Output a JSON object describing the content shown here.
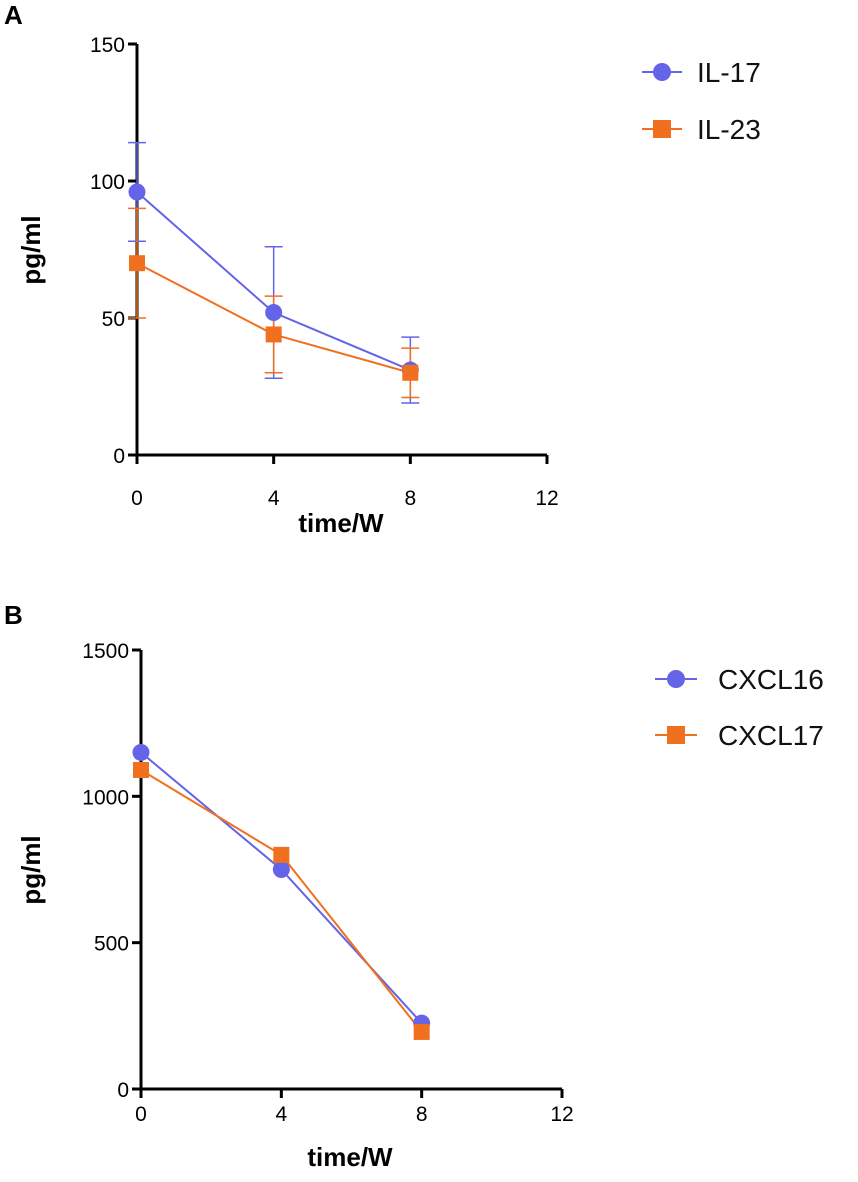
{
  "colors": {
    "series1": "#6464e8",
    "series2": "#f07020",
    "axis": "#000000"
  },
  "chart_data": [
    {
      "panel": "A",
      "type": "line",
      "xlabel": "time/W",
      "ylabel": "pg/ml",
      "xlim": [
        0,
        12
      ],
      "ylim": [
        0,
        150
      ],
      "xticks": [
        "0",
        "4",
        "8",
        "12"
      ],
      "yticks": [
        "0",
        "50",
        "100",
        "150"
      ],
      "legend_position": "top-right",
      "x": [
        0,
        4,
        8
      ],
      "series": [
        {
          "name": "IL-17",
          "marker": "circle",
          "color": "#6464e8",
          "values": [
            96,
            52,
            31
          ],
          "error": [
            18,
            24,
            12
          ]
        },
        {
          "name": "IL-23",
          "marker": "square",
          "color": "#f07020",
          "values": [
            70,
            44,
            30
          ],
          "error": [
            20,
            14,
            9
          ]
        }
      ]
    },
    {
      "panel": "B",
      "type": "line",
      "xlabel": "time/W",
      "ylabel": "pg/ml",
      "xlim": [
        0,
        12
      ],
      "ylim": [
        0,
        1500
      ],
      "xticks": [
        "0",
        "4",
        "8",
        "12"
      ],
      "yticks": [
        "0",
        "500",
        "1000",
        "1500"
      ],
      "legend_position": "top-right",
      "x": [
        0,
        4,
        8
      ],
      "series": [
        {
          "name": "CXCL16",
          "marker": "circle",
          "color": "#6464e8",
          "values": [
            1150,
            750,
            225
          ],
          "error": [
            0,
            0,
            0
          ]
        },
        {
          "name": "CXCL17",
          "marker": "square",
          "color": "#f07020",
          "values": [
            1090,
            800,
            195
          ],
          "error": [
            0,
            0,
            0
          ]
        }
      ]
    }
  ]
}
